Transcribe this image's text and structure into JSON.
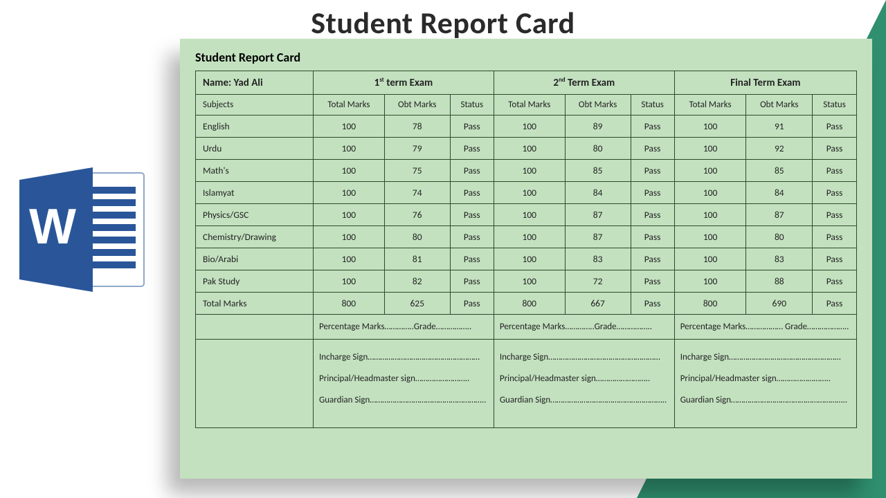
{
  "page": {
    "title": "Student Report Card",
    "card_title": "Student Report Card",
    "bg_color": "#c3e1bf",
    "border_color": "#2c4a2c",
    "accent_triangle": "#2f8f6f"
  },
  "student": {
    "name_label": "Name:",
    "name": "Yad Ali"
  },
  "terms": [
    {
      "label_pre": "1",
      "ord": "st",
      "label_post": " term Exam"
    },
    {
      "label_pre": "2",
      "ord": "nd",
      "label_post": " Term Exam"
    },
    {
      "label_pre": "Final Term Exam",
      "ord": "",
      "label_post": ""
    }
  ],
  "subheaders": {
    "subjects": "Subjects",
    "total": "Total Marks",
    "obt": "Obt Marks",
    "status": "Status"
  },
  "rows": [
    {
      "subject": "English",
      "t1": [
        100,
        78,
        "Pass"
      ],
      "t2": [
        100,
        89,
        "Pass"
      ],
      "t3": [
        100,
        91,
        "Pass"
      ]
    },
    {
      "subject": "Urdu",
      "t1": [
        100,
        79,
        "Pass"
      ],
      "t2": [
        100,
        80,
        "Pass"
      ],
      "t3": [
        100,
        92,
        "Pass"
      ]
    },
    {
      "subject": "Math's",
      "t1": [
        100,
        75,
        "Pass"
      ],
      "t2": [
        100,
        85,
        "Pass"
      ],
      "t3": [
        100,
        85,
        "Pass"
      ]
    },
    {
      "subject": "Islamyat",
      "t1": [
        100,
        74,
        "Pass"
      ],
      "t2": [
        100,
        84,
        "Pass"
      ],
      "t3": [
        100,
        84,
        "Pass"
      ]
    },
    {
      "subject": "Physics/GSC",
      "t1": [
        100,
        76,
        "Pass"
      ],
      "t2": [
        100,
        87,
        "Pass"
      ],
      "t3": [
        100,
        87,
        "Pass"
      ]
    },
    {
      "subject": "Chemistry/Drawing",
      "t1": [
        100,
        80,
        "Pass"
      ],
      "t2": [
        100,
        87,
        "Pass"
      ],
      "t3": [
        100,
        80,
        "Pass"
      ]
    },
    {
      "subject": "Bio/Arabi",
      "t1": [
        100,
        81,
        "Pass"
      ],
      "t2": [
        100,
        83,
        "Pass"
      ],
      "t3": [
        100,
        83,
        "Pass"
      ]
    },
    {
      "subject": "Pak Study",
      "t1": [
        100,
        82,
        "Pass"
      ],
      "t2": [
        100,
        72,
        "Pass"
      ],
      "t3": [
        100,
        88,
        "Pass"
      ]
    }
  ],
  "totals": {
    "label": "Total Marks",
    "t1": [
      800,
      625,
      "Pass"
    ],
    "t2": [
      800,
      667,
      "Pass"
    ],
    "t3": [
      800,
      690,
      "Pass"
    ]
  },
  "footer": {
    "pct_line": "Percentage Marks…………..Grade……………..",
    "pct_line3": "Percentage Marks……………… Grade………………..",
    "incharge": "Incharge Sign………………………………………………",
    "principal": "Principal/Headmaster sign……………………..",
    "guardian": "Guardian Sign……………………………………………….."
  },
  "icon": {
    "name": "ms-word-icon",
    "blue_dark": "#2a5699",
    "blue_light": "#3f7bd4",
    "page": "#ffffff"
  }
}
